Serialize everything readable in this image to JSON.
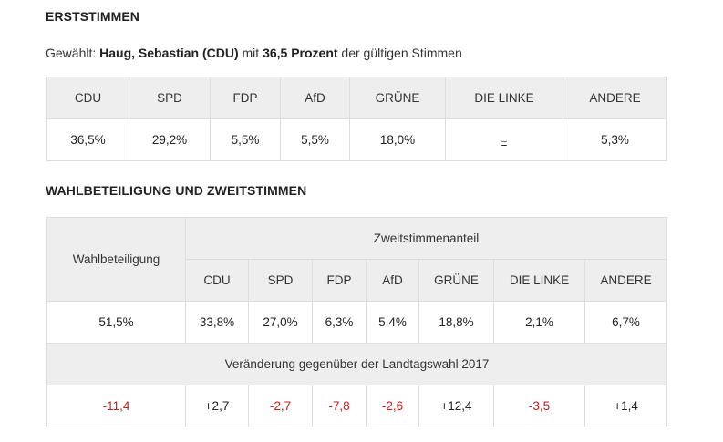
{
  "erststimmen": {
    "heading": "ERSTSTIMMEN",
    "summary": {
      "prefix": "Gewählt: ",
      "winner": "Haug, Sebastian (CDU)",
      "mid": " mit ",
      "percent": "36,5 Prozent",
      "suffix": " der gültigen Stimmen"
    },
    "parties": [
      "CDU",
      "SPD",
      "FDP",
      "AfD",
      "GRÜNE",
      "DIE LINKE",
      "ANDERE"
    ],
    "values": [
      "36,5%",
      "29,2%",
      "5,5%",
      "5,5%",
      "18,0%",
      "–",
      "5,3%"
    ]
  },
  "zweitstimmen": {
    "heading": "WAHLBETEILIGUNG UND ZWEITSTIMMEN",
    "turnout_label": "Wahlbeteiligung",
    "share_label": "Zweitstimmenanteil",
    "parties": [
      "CDU",
      "SPD",
      "FDP",
      "AfD",
      "GRÜNE",
      "DIE LINKE",
      "ANDERE"
    ],
    "turnout_value": "51,5%",
    "values": [
      "33,8%",
      "27,0%",
      "6,3%",
      "5,4%",
      "18,8%",
      "2,1%",
      "6,7%"
    ],
    "change_label": "Veränderung gegenüber der Landtagswahl 2017",
    "turnout_change": "-11,4",
    "changes": [
      "+2,7",
      "-2,7",
      "-7,8",
      "-2,6",
      "+12,4",
      "-3,5",
      "+1,4"
    ],
    "colors": {
      "negative": "#cc1b1b",
      "positive": "#222222",
      "header_bg": "#eeeeee"
    }
  }
}
